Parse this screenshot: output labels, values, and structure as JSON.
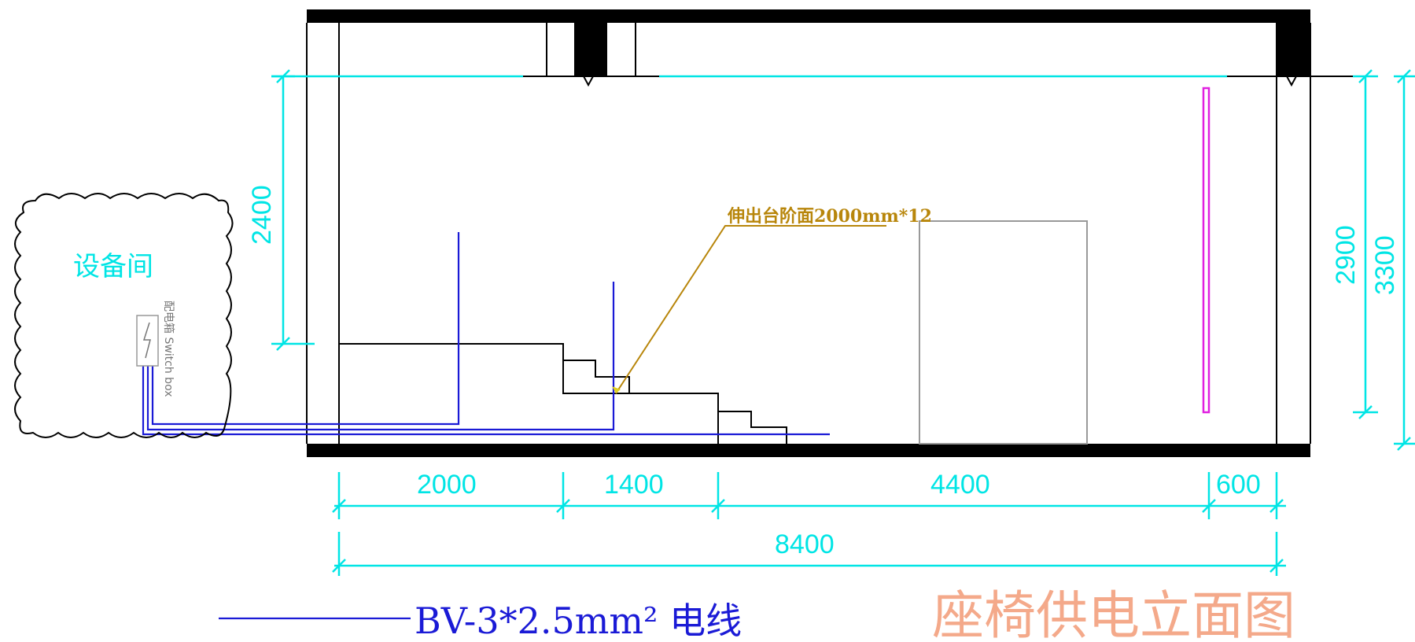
{
  "equipment_room": {
    "label": "设备间",
    "switch_box_label": "配电箱 Switch box",
    "switch_box_icon": "lightning-icon"
  },
  "annotation": {
    "step_note": "伸出台阶面2000mm*12"
  },
  "dimensions": {
    "bottom_segments": [
      "2000",
      "1400",
      "4400",
      "600"
    ],
    "bottom_total": "8400",
    "height_2400": "2400",
    "height_2900": "2900",
    "height_3300": "3300"
  },
  "legend": {
    "wire_label": "BV-3*2.5mm² 电线",
    "wire_color": "#1a1ad6"
  },
  "title": "座椅供电立面图",
  "colors": {
    "dimension": "#00e5e5",
    "annotation": "#b8860b",
    "title": "#f4a98a",
    "wire": "#1a1ad6",
    "light_bar": "#e020e0",
    "box_outline": "#999999"
  }
}
